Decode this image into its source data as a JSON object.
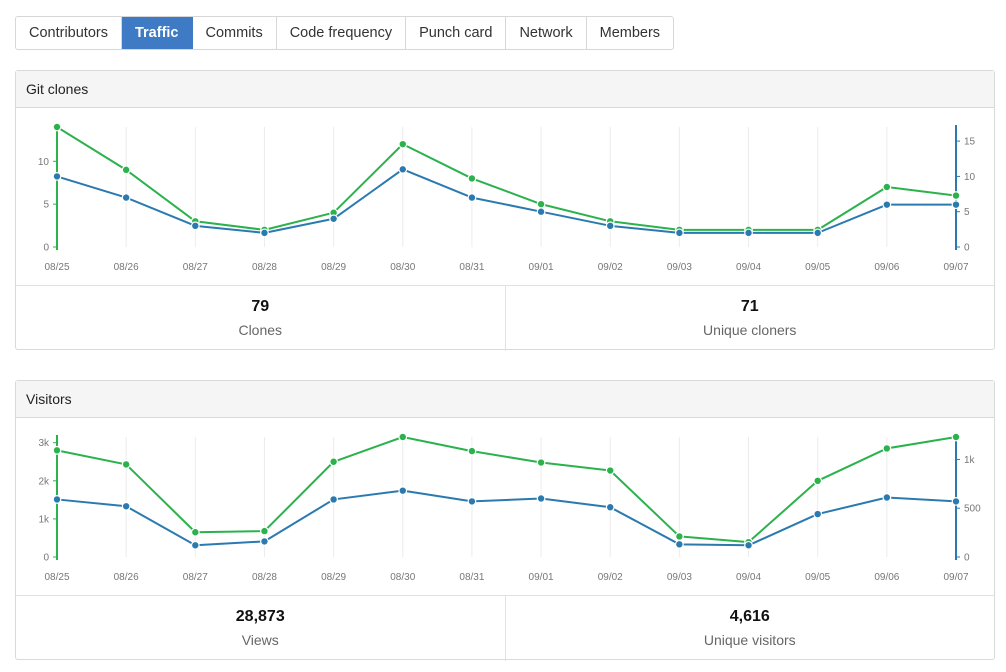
{
  "tabs": [
    {
      "label": "Contributors",
      "active": false
    },
    {
      "label": "Traffic",
      "active": true
    },
    {
      "label": "Commits",
      "active": false
    },
    {
      "label": "Code frequency",
      "active": false
    },
    {
      "label": "Punch card",
      "active": false
    },
    {
      "label": "Network",
      "active": false
    },
    {
      "label": "Members",
      "active": false
    }
  ],
  "colors": {
    "total_series": "#2bb24c",
    "unique_series": "#2a7ab0",
    "active_tab": "#3f7ac4"
  },
  "clones": {
    "title": "Git clones",
    "stat_total": {
      "value": "79",
      "label": "Clones"
    },
    "stat_unique": {
      "value": "71",
      "label": "Unique cloners"
    }
  },
  "visitors": {
    "title": "Visitors",
    "stat_total": {
      "value": "28,873",
      "label": "Views"
    },
    "stat_unique": {
      "value": "4,616",
      "label": "Unique visitors"
    }
  },
  "chart_data": [
    {
      "type": "line",
      "x": [
        "08/25",
        "08/26",
        "08/27",
        "08/28",
        "08/29",
        "08/30",
        "08/31",
        "09/01",
        "09/02",
        "09/03",
        "09/04",
        "09/05",
        "09/06",
        "09/07"
      ],
      "series": [
        {
          "name": "Clones",
          "axis": "left",
          "color": "#2bb24c",
          "values": [
            14,
            9,
            3,
            2,
            4,
            12,
            8,
            5,
            3,
            2,
            2,
            2,
            7,
            6
          ]
        },
        {
          "name": "Unique cloners",
          "axis": "right",
          "color": "#2a7ab0",
          "values": [
            10,
            7,
            3,
            2,
            4,
            11,
            7,
            5,
            3,
            2,
            2,
            2,
            6,
            6
          ]
        }
      ],
      "left_axis": {
        "ticks": [
          0,
          5,
          10
        ],
        "tick_labels": [
          "0",
          "5",
          "10"
        ],
        "range": [
          0,
          14
        ]
      },
      "right_axis": {
        "ticks": [
          0,
          5,
          10,
          15
        ],
        "tick_labels": [
          "0",
          "5",
          "10",
          "15"
        ],
        "range": [
          0,
          17
        ]
      },
      "grid": "vertical",
      "legend": "none"
    },
    {
      "type": "line",
      "x": [
        "08/25",
        "08/26",
        "08/27",
        "08/28",
        "08/29",
        "08/30",
        "08/31",
        "09/01",
        "09/02",
        "09/03",
        "09/04",
        "09/05",
        "09/06",
        "09/07"
      ],
      "series": [
        {
          "name": "Views",
          "axis": "left",
          "color": "#2bb24c",
          "values": [
            2800,
            2430,
            650,
            680,
            2500,
            3150,
            2780,
            2480,
            2270,
            540,
            390,
            2000,
            2850,
            3150
          ]
        },
        {
          "name": "Unique visitors",
          "axis": "right",
          "color": "#2a7ab0",
          "values": [
            590,
            520,
            120,
            160,
            590,
            680,
            570,
            600,
            510,
            130,
            120,
            440,
            610,
            570
          ]
        }
      ],
      "left_axis": {
        "ticks": [
          0,
          1000,
          2000,
          3000
        ],
        "tick_labels": [
          "0",
          "1k",
          "2k",
          "3k"
        ],
        "range": [
          0,
          3150
        ]
      },
      "right_axis": {
        "ticks": [
          0,
          500,
          1000
        ],
        "tick_labels": [
          "0",
          "500",
          "1k"
        ],
        "range": [
          0,
          1230
        ]
      },
      "grid": "vertical",
      "legend": "none"
    }
  ]
}
